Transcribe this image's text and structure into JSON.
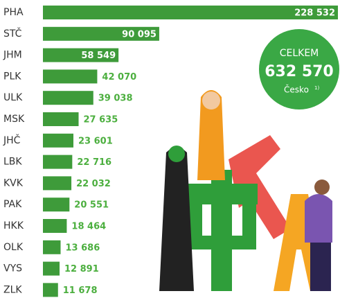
{
  "chart_data": {
    "type": "hbar",
    "categories": [
      "PHA",
      "STČ",
      "JHM",
      "PLK",
      "ULK",
      "MSK",
      "JHČ",
      "LBK",
      "KVK",
      "PAK",
      "HKK",
      "OLK",
      "VYS",
      "ZLK"
    ],
    "values": [
      228532,
      90095,
      58549,
      42070,
      39038,
      27635,
      23601,
      22716,
      22032,
      20551,
      18464,
      13686,
      12891,
      11678
    ],
    "value_labels": [
      "228 532",
      "90 095",
      "58 549",
      "42 070",
      "39 038",
      "27 635",
      "23 601",
      "22 716",
      "22 032",
      "20 551",
      "18 464",
      "13 686",
      "12 891",
      "11 678"
    ],
    "color": "#3e9b3a",
    "label_color": "#4caf3f",
    "total": {
      "title": "CELKEM",
      "value": 632570,
      "value_label": "632 570",
      "note": "Česko",
      "footnote": "1)",
      "color": "#3aa845"
    }
  }
}
